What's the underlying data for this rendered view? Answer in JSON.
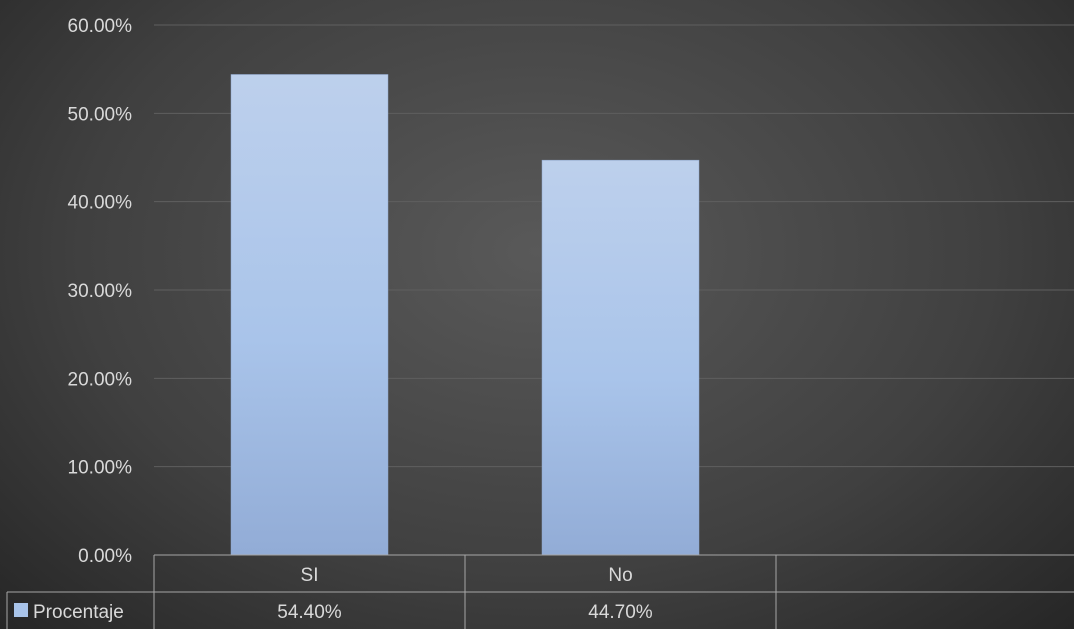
{
  "chart_data": {
    "type": "bar",
    "categories": [
      "SI",
      "No"
    ],
    "series": [
      {
        "name": "Procentaje",
        "values": [
          0.544,
          0.447
        ],
        "labels": [
          "54.40%",
          "44.70%"
        ],
        "color": "#a9c4ea"
      }
    ],
    "ylim": [
      0,
      0.6
    ],
    "yticks": [
      0,
      0.1,
      0.2,
      0.3,
      0.4,
      0.5,
      0.6
    ],
    "ytick_labels": [
      "0.00%",
      "10.00%",
      "20.00%",
      "30.00%",
      "40.00%",
      "50.00%",
      "60.00%"
    ],
    "grid": true,
    "data_table": true,
    "background": "#404040",
    "text_color": "#d9d9d9"
  }
}
